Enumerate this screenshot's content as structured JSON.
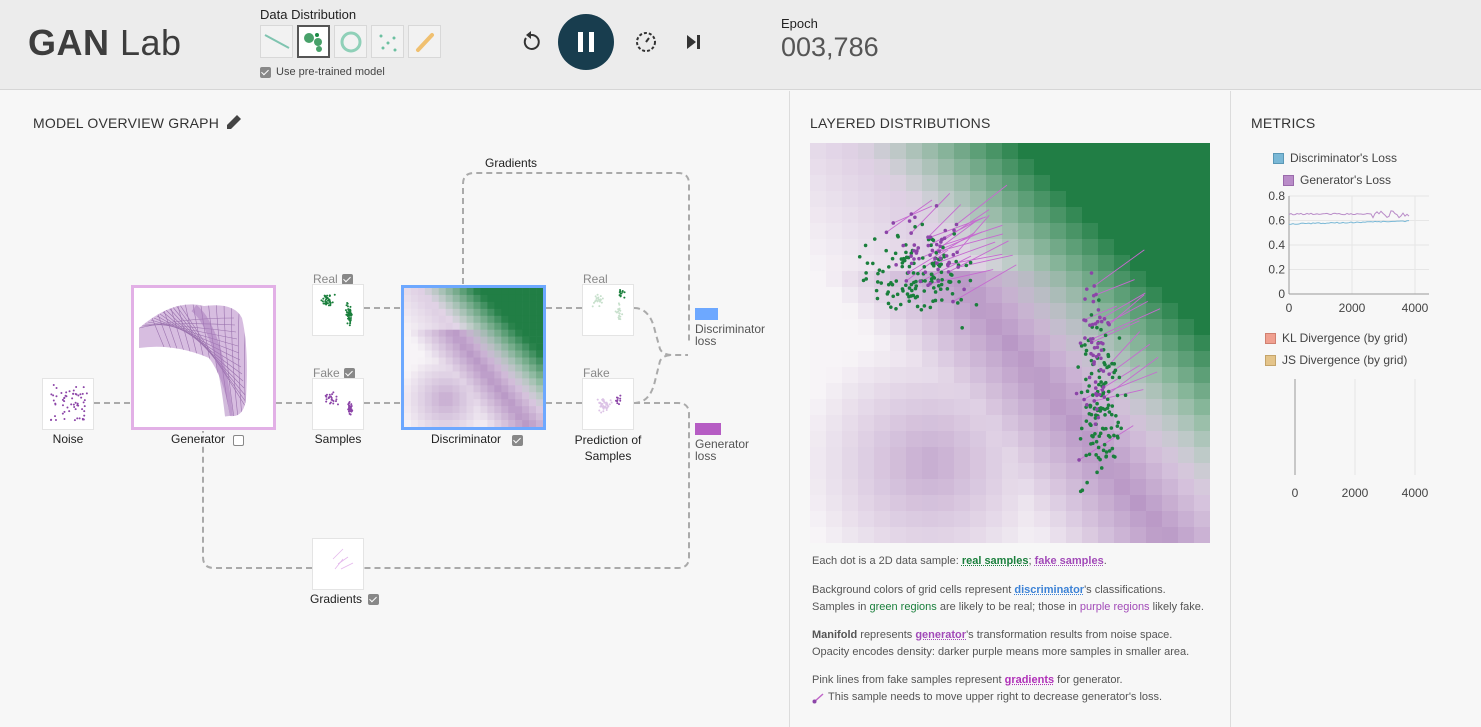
{
  "header": {
    "logo_bold": "GAN",
    "logo_rest": " Lab",
    "data_distribution_title": "Data Distribution",
    "pretrained_label": "Use pre-trained model",
    "epoch_label": "Epoch",
    "epoch_value": "003,786"
  },
  "model_graph": {
    "title": "MODEL OVERVIEW GRAPH",
    "gradients_top_label": "Gradients",
    "real_label": "Real",
    "fake_label": "Fake",
    "real_pred_label": "Real",
    "fake_pred_label": "Fake",
    "noise_label": "Noise",
    "generator_label": "Generator",
    "samples_label": "Samples",
    "discriminator_label": "Discriminator",
    "prediction_label_1": "Prediction of",
    "prediction_label_2": "Samples",
    "disc_loss_1": "Discriminator",
    "disc_loss_2": "loss",
    "gen_loss_1": "Generator",
    "gen_loss_2": "loss",
    "gradients_bottom_label": "Gradients"
  },
  "layered": {
    "title": "LAYERED DISTRIBUTIONS",
    "line1_pre": "Each dot is a 2D data sample: ",
    "real_samples": "real samples",
    "sep": "; ",
    "fake_samples": "fake samples",
    "line1_post": ".",
    "line2_pre": "Background colors of grid cells represent ",
    "discriminator": "discriminator",
    "line2_post": "'s classifications.",
    "line3_pre": "Samples in ",
    "green_regions": "green regions",
    "line3_mid": " are likely to be real; those in ",
    "purple_regions": "purple regions",
    "line3_post": " likely fake.",
    "manifold": "Manifold",
    "line4_mid": " represents ",
    "generator": "generator",
    "line4_post": "'s transformation results from noise space.",
    "line5": "Opacity encodes density: darker purple means more samples in smaller area.",
    "line6_pre": "Pink lines from fake samples represent ",
    "gradients": "gradients",
    "line6_post": " for generator.",
    "line7": "This sample needs to move upper right to decrease generator's loss."
  },
  "metrics": {
    "title": "METRICS",
    "disc_loss_legend": "Discriminator's Loss",
    "gen_loss_legend": "Generator's Loss",
    "kl_legend": "KL Divergence (by grid)",
    "js_legend": "JS Divergence (by grid)",
    "loss_yticks": [
      "0.8",
      "0.6",
      "0.4",
      "0.2",
      "0"
    ],
    "loss_xticks": [
      "0",
      "2000",
      "4000"
    ],
    "div_xticks": [
      "0",
      "2000",
      "4000"
    ]
  },
  "colors": {
    "real": "#1a7f3c",
    "fake": "#8c45a8",
    "disc_loss": "#7ab8d6",
    "gen_loss": "#b98cc8",
    "kl": "#f0a090",
    "js": "#e4c48a",
    "disc_box": "#6da8ff",
    "gen_box": "#e2b0e6"
  },
  "icons": {
    "reset": "reset-icon",
    "pause": "pause-icon",
    "step_mode": "step-mode-icon",
    "next": "next-step-icon",
    "edit": "pencil-icon"
  }
}
